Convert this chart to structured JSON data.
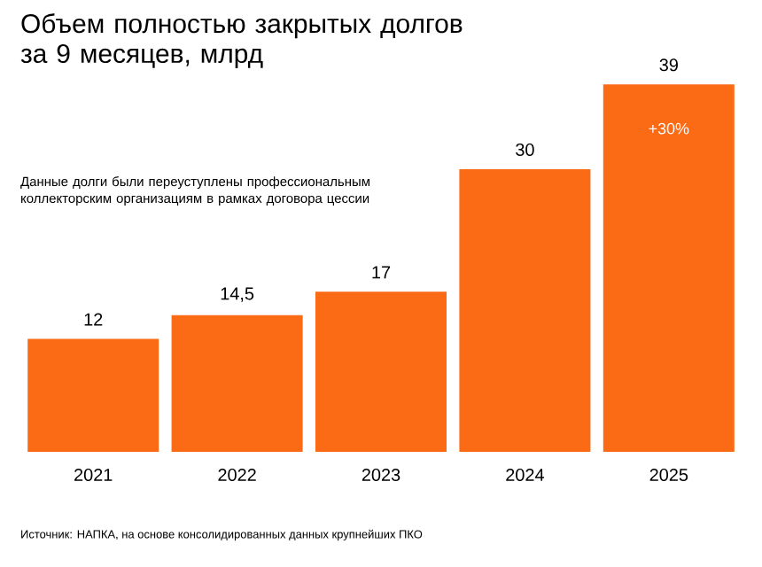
{
  "chart_data": {
    "type": "bar",
    "title": "Объем полностью закрытых долгов за 9 месяцев, млрд",
    "categories": [
      "2021",
      "2022",
      "2023",
      "2024",
      "2025"
    ],
    "values": [
      12,
      14.5,
      17,
      30,
      39
    ],
    "value_labels": [
      "12",
      "14,5",
      "17",
      "30",
      "39"
    ],
    "color": "#fb6a14",
    "annotations": [
      "Данные долги были переуступлены профессиональным коллекторским организациям в рамках договора цессии",
      "+30%",
      "Источник: НАПКА, на основе консолидированных данных крупнейших ПКО"
    ]
  }
}
